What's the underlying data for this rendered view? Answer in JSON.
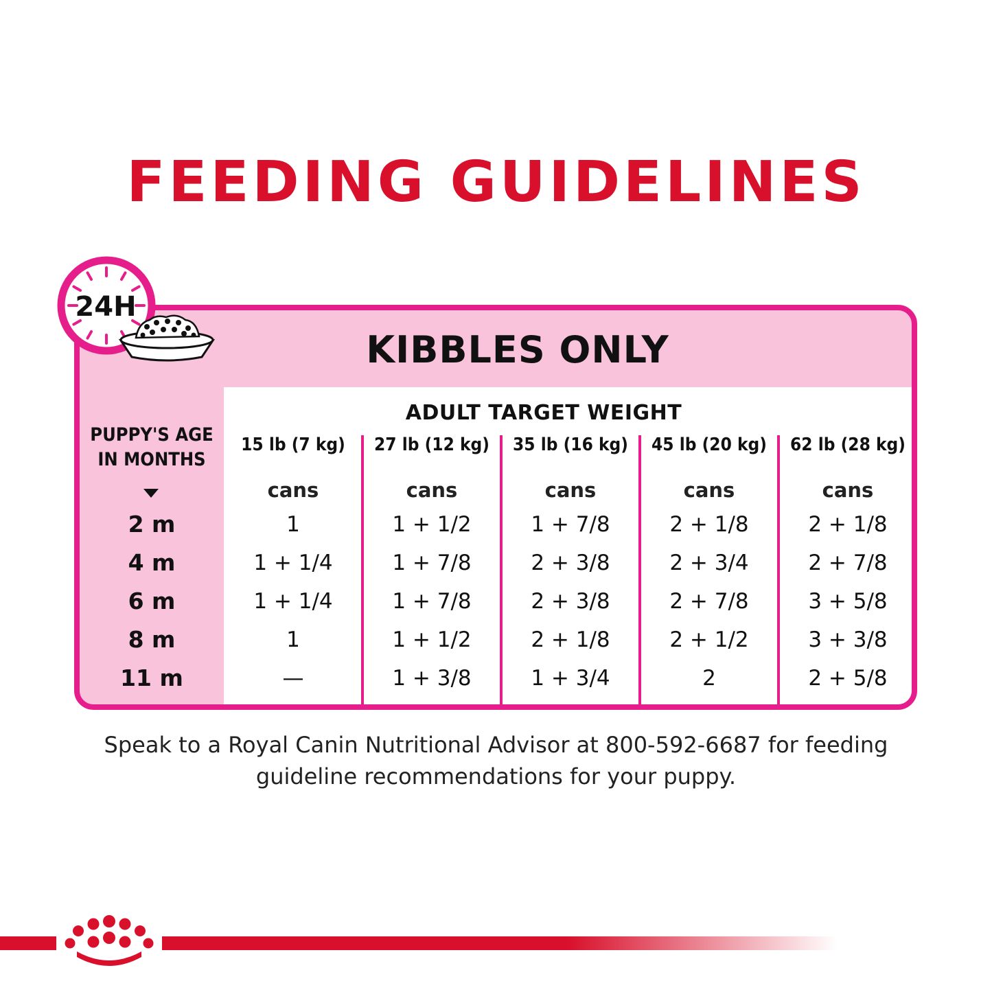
{
  "title": "FEEDING GUIDELINES",
  "badge": {
    "label": "24H"
  },
  "card": {
    "heading": "KIBBLES ONLY",
    "age_header": [
      "PUPPY'S AGE",
      "IN MONTHS"
    ],
    "weight_header": "ADULT TARGET WEIGHT",
    "unit": "cans",
    "columns": [
      "15 lb (7 kg)",
      "27 lb (12 kg)",
      "35 lb (16 kg)",
      "45 lb (20 kg)",
      "62 lb (28 kg)"
    ],
    "rows": [
      {
        "age": "2 m",
        "values": [
          "1",
          "1 + 1/2",
          "1 + 7/8",
          "2 + 1/8",
          "2 + 1/8"
        ]
      },
      {
        "age": "4 m",
        "values": [
          "1 + 1/4",
          "1 + 7/8",
          "2 + 3/8",
          "2 + 3/4",
          "2 + 7/8"
        ]
      },
      {
        "age": "6 m",
        "values": [
          "1 + 1/4",
          "1 + 7/8",
          "2 + 3/8",
          "2 + 7/8",
          "3 + 5/8"
        ]
      },
      {
        "age": "8 m",
        "values": [
          "1",
          "1 + 1/2",
          "2 + 1/8",
          "2 + 1/2",
          "3 + 3/8"
        ]
      },
      {
        "age": "11 m",
        "values": [
          "—",
          "1 + 3/8",
          "1 + 3/4",
          "2",
          "2 + 5/8"
        ]
      }
    ]
  },
  "note": {
    "line1": "Speak to a Royal Canin Nutritional Advisor at 800-592-6687 for feeding",
    "line2": "guideline recommendations for your puppy."
  },
  "icons": {
    "clock": "clock-24h-icon",
    "bowl": "food-bowl-icon",
    "brand": "royal-canin-crown-logo"
  },
  "colors": {
    "brand_red": "#d8102b",
    "magenta": "#e61e8c",
    "light_pink": "#fac3dc"
  }
}
